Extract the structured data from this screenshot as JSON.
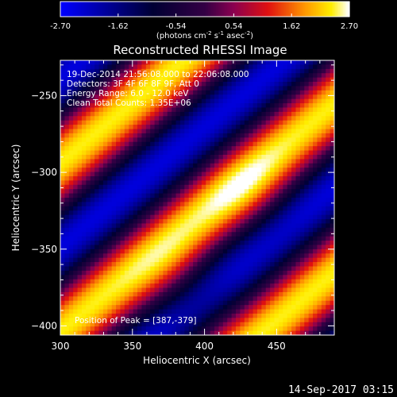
{
  "chart_data": {
    "type": "heatmap",
    "title": "Reconstructed RHESSI Image",
    "xlabel": "Heliocentric X (arcsec)",
    "ylabel": "Heliocentric Y (arcsec)",
    "xlim": [
      300,
      490
    ],
    "ylim": [
      -406,
      -227
    ],
    "x_ticks": [
      300,
      350,
      400,
      450
    ],
    "y_ticks": [
      -250,
      -300,
      -350,
      -400
    ],
    "grid": false,
    "colorbar": {
      "range": [
        -2.7,
        2.7
      ],
      "ticks": [
        "-2.70",
        "-1.62",
        "-0.54",
        "0.54",
        "1.62",
        "2.70"
      ],
      "label_prefix": "(photons cm",
      "label_sup1": "-2",
      "label_mid": " s",
      "label_sup2": "-1",
      "label_mid2": " asec",
      "label_sup3": "-2",
      "label_suffix": ")",
      "colormap": [
        {
          "v": 0.0,
          "c": "#0000ff"
        },
        {
          "v": 0.32,
          "c": "#000033"
        },
        {
          "v": 0.5,
          "c": "#330044"
        },
        {
          "v": 0.6,
          "c": "#8a0050"
        },
        {
          "v": 0.72,
          "c": "#e01010"
        },
        {
          "v": 0.85,
          "c": "#ff9900"
        },
        {
          "v": 0.94,
          "c": "#ffee00"
        },
        {
          "v": 1.0,
          "c": "#ffffff"
        }
      ]
    },
    "image_model": {
      "description_units": "arcsec",
      "stripe_slope": 0.78,
      "stripe_period": 110,
      "stripe_phase_x": 300,
      "stripe_phase_y": -300,
      "amplitude": 2.4,
      "peaks": [
        {
          "x": 387,
          "y": -379,
          "strength": 0.6
        },
        {
          "x": 432,
          "y": -318,
          "strength": 0.5
        }
      ]
    },
    "annotations": {
      "time_range": "19-Dec-2014 21:56:08.000 to 22:06:08.000",
      "detectors": "Detectors: 3F 4F 6F 8F 9F, Att 0",
      "energy": "Energy Range: 6.0 - 12.0 keV",
      "clean": "Clean   Total Counts: 1.35E+06",
      "peak": "Position of Peak = [387,-379]"
    }
  },
  "footer": {
    "timestamp": "14-Sep-2017 03:15"
  }
}
